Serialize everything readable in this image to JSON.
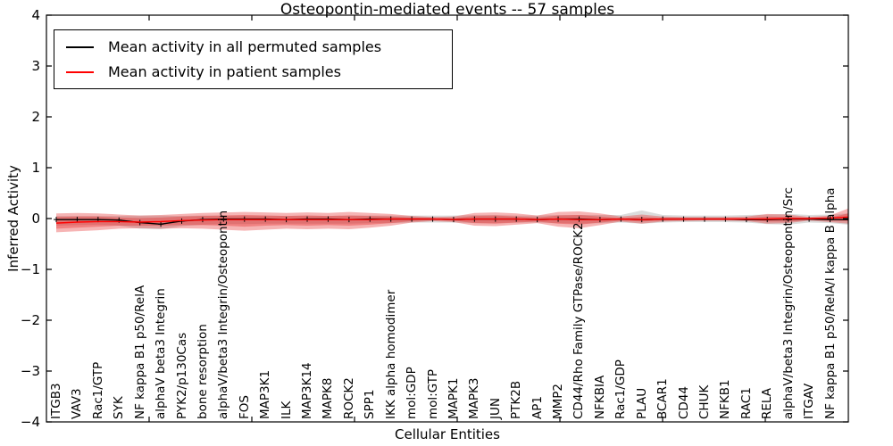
{
  "chart_data": {
    "type": "line",
    "title": "Osteopontin-mediated events -- 57 samples",
    "xlabel": "Cellular Entities",
    "ylabel": "Inferred Activity",
    "ylim": [
      -4,
      4
    ],
    "yticks": {
      "values": [
        4,
        3,
        2,
        1,
        0,
        -1,
        -2,
        -3,
        -4
      ],
      "labels": [
        "4",
        "3",
        "2",
        "1",
        "0",
        "−1",
        "−2",
        "−3",
        "−4"
      ]
    },
    "grid": false,
    "legend_position": "upper-left",
    "categories": [
      "ITGB3",
      "VAV3",
      "Rac1/GTP",
      "SYK",
      "NF kappa B1 p50/RelA",
      "alphaV beta3 Integrin",
      "PYK2/p130Cas",
      "bone resorption",
      "alphaV/beta3 Integrin/Osteopontin",
      "FOS",
      "MAP3K1",
      "ILK",
      "MAP3K14",
      "MAPK8",
      "ROCK2",
      "SPP1",
      "IKK alpha homodimer",
      "mol:GDP",
      "mol:GTP",
      "MAPK1",
      "MAPK3",
      "JUN",
      "PTK2B",
      "AP1",
      "MMP2",
      "CD44/Rho Family GTPase/ROCK2",
      "NFKBIA",
      "Rac1/GDP",
      "PLAU",
      "BCAR1",
      "CD44",
      "CHUK",
      "NFKB1",
      "RAC1",
      "RELA",
      "alphaV/beta3 Integrin/Osteopontin/Src",
      "ITGAV",
      "NF kappa B1 p50/RelA/I kappa B alpha"
    ],
    "values_include_extra_right_edge_point": true,
    "series": [
      {
        "name": "Mean activity in all permuted samples",
        "color": "#000000",
        "marker": "+",
        "values": [
          -0.02,
          -0.02,
          -0.02,
          -0.03,
          -0.08,
          -0.11,
          -0.05,
          -0.02,
          -0.01,
          -0.01,
          -0.01,
          -0.02,
          -0.01,
          -0.01,
          -0.02,
          -0.01,
          -0.01,
          -0.01,
          -0.01,
          -0.02,
          -0.01,
          -0.01,
          -0.01,
          -0.02,
          -0.01,
          -0.01,
          -0.02,
          -0.01,
          -0.02,
          -0.01,
          -0.01,
          -0.01,
          -0.01,
          -0.02,
          -0.02,
          -0.01,
          -0.01,
          -0.02,
          -0.02
        ]
      },
      {
        "name": "Mean activity in patient samples",
        "color": "#ff0000",
        "marker": "none",
        "values": [
          -0.09,
          -0.07,
          -0.06,
          -0.06,
          -0.07,
          -0.06,
          -0.04,
          -0.03,
          -0.02,
          -0.02,
          -0.02,
          -0.02,
          -0.02,
          -0.02,
          -0.02,
          -0.02,
          -0.01,
          -0.01,
          -0.01,
          -0.02,
          -0.01,
          -0.01,
          -0.01,
          -0.02,
          -0.01,
          -0.02,
          -0.02,
          -0.01,
          -0.02,
          -0.01,
          -0.01,
          -0.01,
          -0.01,
          -0.01,
          -0.01,
          0.0,
          0.0,
          0.01,
          0.03
        ]
      }
    ],
    "bands": [
      {
        "name": "permuted-sample-range",
        "color": "#b0b0b0",
        "opacity": 0.45,
        "upper": [
          0.05,
          0.05,
          0.05,
          0.05,
          0.06,
          0.06,
          0.05,
          0.06,
          0.06,
          0.06,
          0.06,
          0.05,
          0.06,
          0.05,
          0.06,
          0.06,
          0.06,
          0.06,
          0.06,
          0.06,
          0.07,
          0.07,
          0.06,
          0.06,
          0.07,
          0.07,
          0.07,
          0.07,
          0.16,
          0.07,
          0.06,
          0.06,
          0.06,
          0.07,
          0.08,
          0.09,
          0.07,
          0.08,
          0.1
        ],
        "lower": [
          -0.14,
          -0.13,
          -0.12,
          -0.14,
          -0.2,
          -0.21,
          -0.15,
          -0.12,
          -0.11,
          -0.11,
          -0.1,
          -0.1,
          -0.1,
          -0.1,
          -0.1,
          -0.09,
          -0.09,
          -0.08,
          -0.08,
          -0.08,
          -0.09,
          -0.09,
          -0.08,
          -0.08,
          -0.09,
          -0.1,
          -0.09,
          -0.08,
          -0.1,
          -0.08,
          -0.07,
          -0.07,
          -0.07,
          -0.08,
          -0.11,
          -0.12,
          -0.08,
          -0.09,
          -0.12
        ]
      },
      {
        "name": "patient-sample-range-outer",
        "color": "#e41a1c",
        "opacity": 0.33,
        "upper": [
          0.1,
          0.11,
          0.1,
          0.08,
          0.06,
          0.07,
          0.09,
          0.11,
          0.12,
          0.13,
          0.12,
          0.11,
          0.12,
          0.11,
          0.13,
          0.11,
          0.09,
          0.05,
          0.03,
          0.04,
          0.11,
          0.12,
          0.1,
          0.06,
          0.13,
          0.14,
          0.1,
          0.04,
          0.08,
          0.04,
          0.03,
          0.03,
          0.03,
          0.04,
          0.09,
          0.08,
          0.03,
          0.06,
          0.2
        ],
        "lower": [
          -0.27,
          -0.25,
          -0.23,
          -0.2,
          -0.19,
          -0.2,
          -0.19,
          -0.2,
          -0.22,
          -0.24,
          -0.22,
          -0.2,
          -0.21,
          -0.2,
          -0.21,
          -0.18,
          -0.14,
          -0.08,
          -0.05,
          -0.07,
          -0.14,
          -0.15,
          -0.12,
          -0.09,
          -0.16,
          -0.19,
          -0.13,
          -0.06,
          -0.1,
          -0.06,
          -0.05,
          -0.04,
          -0.04,
          -0.05,
          -0.1,
          -0.09,
          -0.04,
          -0.07,
          -0.1
        ]
      },
      {
        "name": "patient-sample-range-inner",
        "color": "#e41a1c",
        "opacity": 0.33,
        "upper": [
          0.03,
          0.04,
          0.04,
          0.02,
          0.01,
          0.02,
          0.04,
          0.05,
          0.06,
          0.07,
          0.06,
          0.05,
          0.06,
          0.05,
          0.06,
          0.05,
          0.04,
          0.02,
          0.01,
          0.01,
          0.05,
          0.06,
          0.04,
          0.02,
          0.06,
          0.07,
          0.04,
          0.01,
          0.03,
          0.01,
          0.01,
          0.01,
          0.01,
          0.01,
          0.04,
          0.03,
          0.01,
          0.02,
          0.1
        ],
        "lower": [
          -0.2,
          -0.18,
          -0.16,
          -0.14,
          -0.14,
          -0.14,
          -0.13,
          -0.13,
          -0.14,
          -0.16,
          -0.14,
          -0.13,
          -0.14,
          -0.13,
          -0.14,
          -0.12,
          -0.09,
          -0.05,
          -0.03,
          -0.04,
          -0.09,
          -0.1,
          -0.08,
          -0.06,
          -0.1,
          -0.12,
          -0.08,
          -0.04,
          -0.06,
          -0.04,
          -0.03,
          -0.03,
          -0.03,
          -0.03,
          -0.06,
          -0.06,
          -0.03,
          -0.04,
          -0.05
        ]
      }
    ]
  },
  "legend": {
    "items": [
      {
        "label": "Mean activity in all permuted samples",
        "color": "#000000"
      },
      {
        "label": "Mean activity in patient samples",
        "color": "#ff0000"
      }
    ]
  }
}
